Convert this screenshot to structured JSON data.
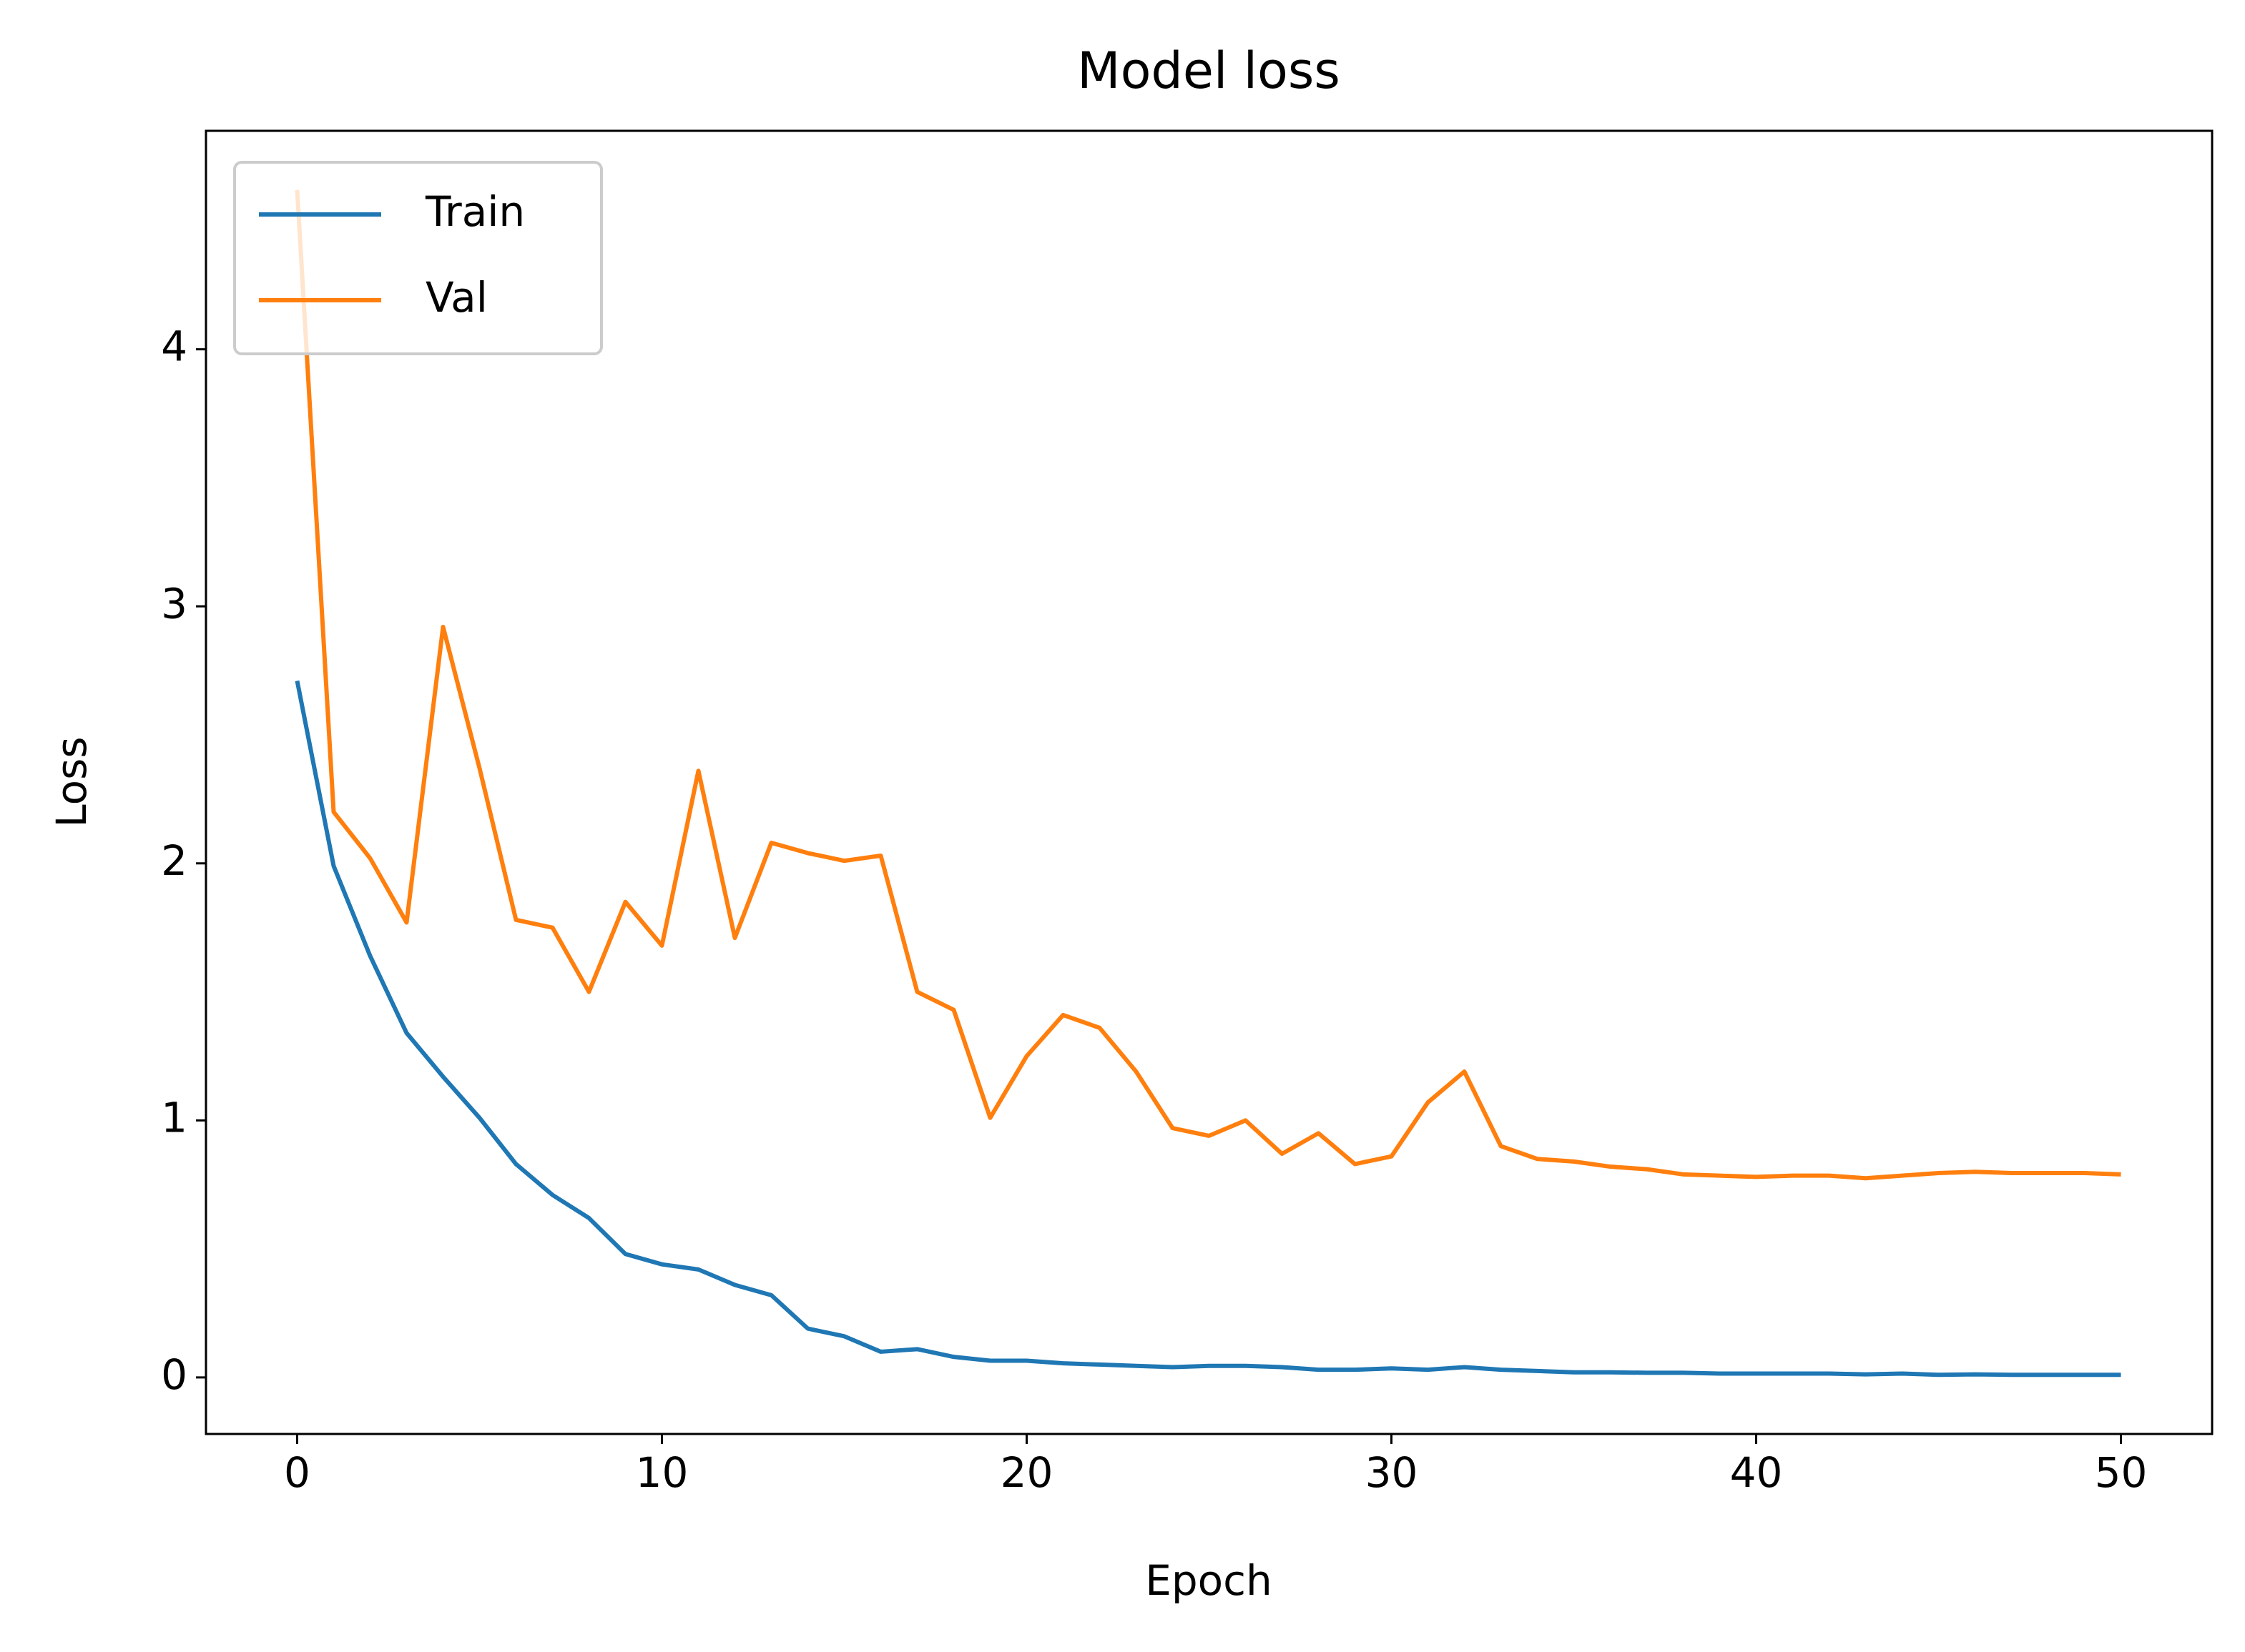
{
  "chart_data": {
    "type": "line",
    "title": "Model loss",
    "x_label": "Epoch",
    "y_label": "Loss",
    "x": [
      0,
      1,
      2,
      3,
      4,
      5,
      6,
      7,
      8,
      9,
      10,
      11,
      12,
      13,
      14,
      15,
      16,
      17,
      18,
      19,
      20,
      21,
      22,
      23,
      24,
      25,
      26,
      27,
      28,
      29,
      30,
      31,
      32,
      33,
      34,
      35,
      36,
      37,
      38,
      39,
      40,
      41,
      42,
      43,
      44,
      45,
      46,
      47,
      48,
      49,
      50
    ],
    "series": [
      {
        "name": "Train",
        "color": "#1f77b4",
        "values": [
          2.71,
          1.99,
          1.64,
          1.34,
          1.17,
          1.01,
          0.83,
          0.71,
          0.62,
          0.48,
          0.44,
          0.42,
          0.36,
          0.32,
          0.19,
          0.16,
          0.1,
          0.11,
          0.08,
          0.065,
          0.065,
          0.055,
          0.05,
          0.045,
          0.04,
          0.045,
          0.045,
          0.04,
          0.03,
          0.03,
          0.035,
          0.03,
          0.04,
          0.03,
          0.025,
          0.02,
          0.02,
          0.018,
          0.018,
          0.015,
          0.015,
          0.015,
          0.015,
          0.012,
          0.015,
          0.01,
          0.012,
          0.01,
          0.01,
          0.01,
          0.01
        ]
      },
      {
        "name": "Val",
        "color": "#ff7f0e",
        "values": [
          4.62,
          2.2,
          2.02,
          1.77,
          2.92,
          2.37,
          1.78,
          1.75,
          1.5,
          1.85,
          1.68,
          2.36,
          1.71,
          2.08,
          2.04,
          2.01,
          2.03,
          1.5,
          1.43,
          1.01,
          1.25,
          1.41,
          1.36,
          1.19,
          0.97,
          0.94,
          1.0,
          0.87,
          0.95,
          0.83,
          0.86,
          1.07,
          1.19,
          0.9,
          0.85,
          0.84,
          0.82,
          0.81,
          0.79,
          0.785,
          0.78,
          0.785,
          0.785,
          0.775,
          0.785,
          0.795,
          0.8,
          0.795,
          0.795,
          0.795,
          0.79
        ]
      }
    ],
    "xlim": [
      -2.5,
      52.5
    ],
    "ylim": [
      -0.22,
      4.85
    ],
    "xticks": [
      0,
      10,
      20,
      30,
      40,
      50
    ],
    "yticks": [
      0,
      1,
      2,
      3,
      4
    ],
    "legend": "upper left"
  }
}
